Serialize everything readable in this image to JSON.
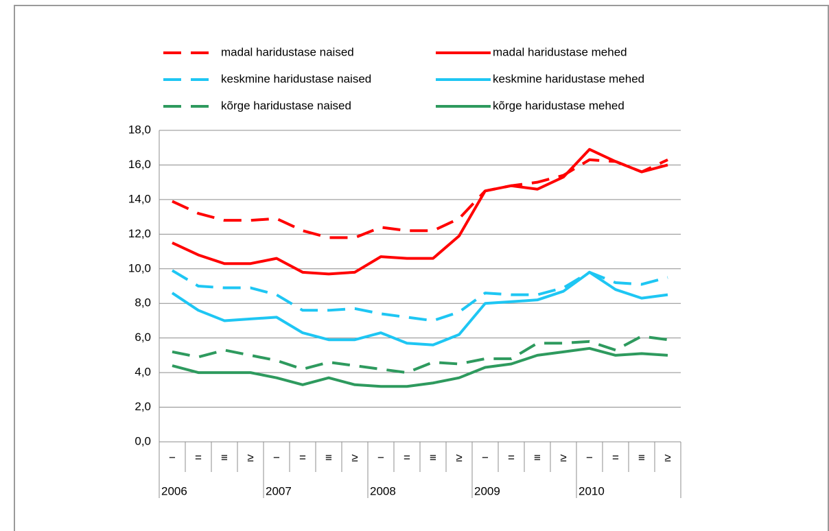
{
  "chart_data": {
    "type": "line",
    "categories": [
      "−",
      "=",
      "≡",
      "≥",
      "−",
      "=",
      "≡",
      "≥",
      "−",
      "=",
      "≡",
      "≥",
      "−",
      "=",
      "≡",
      "≥",
      "−",
      "=",
      "≡",
      "≥"
    ],
    "year_groups": [
      "2006",
      "2007",
      "2008",
      "2009",
      "2010"
    ],
    "series": [
      {
        "name": "madal haridustase naised",
        "color": "#ff0000",
        "dashed": true,
        "values": [
          13.9,
          13.2,
          12.8,
          12.8,
          12.9,
          12.2,
          11.8,
          11.8,
          12.4,
          12.2,
          12.2,
          12.9,
          14.5,
          14.8,
          15.0,
          15.4,
          16.3,
          16.2,
          15.6,
          16.3
        ]
      },
      {
        "name": "madal haridustase mehed",
        "color": "#ff0000",
        "dashed": false,
        "values": [
          11.5,
          10.8,
          10.3,
          10.3,
          10.6,
          9.8,
          9.7,
          9.8,
          10.7,
          10.6,
          10.6,
          11.9,
          14.5,
          14.8,
          14.6,
          15.3,
          16.9,
          16.2,
          15.6,
          16.0
        ]
      },
      {
        "name": "keskmine haridustase naised",
        "color": "#1ec6f3",
        "dashed": true,
        "values": [
          9.9,
          9.0,
          8.9,
          8.9,
          8.5,
          7.6,
          7.6,
          7.7,
          7.4,
          7.2,
          7.0,
          7.5,
          8.6,
          8.5,
          8.5,
          8.9,
          9.8,
          9.2,
          9.1,
          9.5
        ]
      },
      {
        "name": "keskmine haridustase mehed",
        "color": "#1ec6f3",
        "dashed": false,
        "values": [
          8.6,
          7.6,
          7.0,
          7.1,
          7.2,
          6.3,
          5.9,
          5.9,
          6.3,
          5.7,
          5.6,
          6.2,
          8.0,
          8.1,
          8.2,
          8.7,
          9.8,
          8.8,
          8.3,
          8.5
        ]
      },
      {
        "name": "kõrge haridustase naised",
        "color": "#2e9a5e",
        "dashed": true,
        "values": [
          5.2,
          4.9,
          5.3,
          5.0,
          4.7,
          4.2,
          4.6,
          4.4,
          4.2,
          4.0,
          4.6,
          4.5,
          4.8,
          4.8,
          5.7,
          5.7,
          5.8,
          5.3,
          6.1,
          5.9
        ]
      },
      {
        "name": "kõrge haridustase mehed",
        "color": "#2e9a5e",
        "dashed": false,
        "values": [
          4.4,
          4.0,
          4.0,
          4.0,
          3.7,
          3.3,
          3.7,
          3.3,
          3.2,
          3.2,
          3.4,
          3.7,
          4.3,
          4.5,
          5.0,
          5.2,
          5.4,
          5.0,
          5.1,
          5.0
        ]
      }
    ],
    "ylim": [
      0,
      18
    ],
    "yticks": [
      {
        "value": 0,
        "label": "0,0"
      },
      {
        "value": 2,
        "label": "2,0"
      },
      {
        "value": 4,
        "label": "4,0"
      },
      {
        "value": 6,
        "label": "6,0"
      },
      {
        "value": 8,
        "label": "8,0"
      },
      {
        "value": 10,
        "label": "10,0"
      },
      {
        "value": 12,
        "label": "12,0"
      },
      {
        "value": 14,
        "label": "14,0"
      },
      {
        "value": 16,
        "label": "16,0"
      },
      {
        "value": 18,
        "label": "18,0"
      }
    ],
    "grid": true
  }
}
